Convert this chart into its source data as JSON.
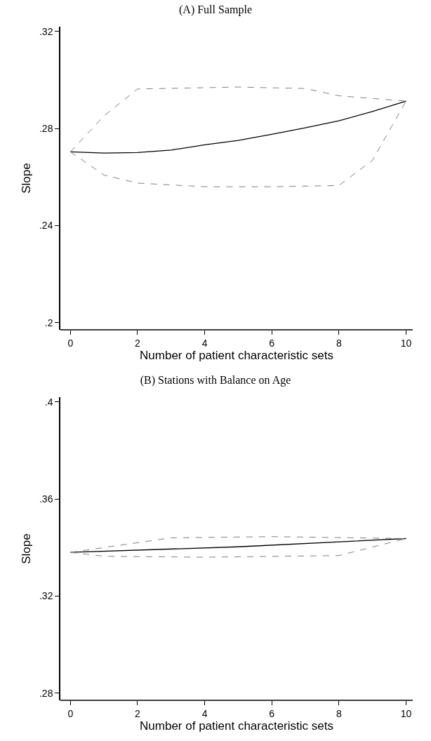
{
  "chart_data": [
    {
      "type": "line",
      "title": "(A) Full Sample",
      "xlabel": "Number of patient characteristic sets",
      "ylabel": "Slope",
      "xlim": [
        -0.3,
        10.2
      ],
      "xticks": [
        0,
        2,
        4,
        6,
        8,
        10
      ],
      "ylim": [
        0.197,
        0.322
      ],
      "yticks": [
        {
          "value": 0.2,
          "label": ".2"
        },
        {
          "value": 0.24,
          "label": ".24"
        },
        {
          "value": 0.28,
          "label": ".28"
        },
        {
          "value": 0.32,
          "label": ".32"
        }
      ],
      "grid": false,
      "marker": "none",
      "series": [
        {
          "color": "#000000",
          "line_style": "solid",
          "x": [
            0,
            1,
            2,
            3,
            4,
            5,
            6,
            7,
            8,
            9,
            10
          ],
          "values": [
            0.2704,
            0.2699,
            0.2701,
            0.2711,
            0.2733,
            0.2751,
            0.2776,
            0.2803,
            0.2832,
            0.287,
            0.2913
          ]
        },
        {
          "color": "#7f7f7f",
          "line_style": "dashed",
          "x": [
            0,
            1,
            2,
            5,
            7,
            8,
            10
          ],
          "values": [
            0.2704,
            0.2852,
            0.2963,
            0.2971,
            0.2965,
            0.2935,
            0.2913
          ]
        },
        {
          "color": "#7f7f7f",
          "line_style": "dashed",
          "x": [
            0,
            1,
            2,
            4,
            6,
            8,
            9,
            10
          ],
          "values": [
            0.2704,
            0.2608,
            0.2575,
            0.256,
            0.256,
            0.2565,
            0.2669,
            0.2913
          ]
        }
      ]
    },
    {
      "type": "line",
      "title": "(B) Stations with Balance on Age",
      "xlabel": "Number of patient characteristic sets",
      "ylabel": "Slope",
      "xlim": [
        -0.3,
        10.2
      ],
      "xticks": [
        0,
        2,
        4,
        6,
        8,
        10
      ],
      "ylim": [
        0.277,
        0.402
      ],
      "yticks": [
        {
          "value": 0.28,
          "label": ".28"
        },
        {
          "value": 0.32,
          "label": ".32"
        },
        {
          "value": 0.36,
          "label": ".36"
        },
        {
          "value": 0.4,
          "label": ".4"
        }
      ],
      "grid": false,
      "marker": "none",
      "series": [
        {
          "color": "#000000",
          "line_style": "solid",
          "x": [
            0,
            5,
            10
          ],
          "values": [
            0.338,
            0.3403,
            0.3437
          ]
        },
        {
          "color": "#7f7f7f",
          "line_style": "dashed",
          "x": [
            0,
            3,
            6,
            10
          ],
          "values": [
            0.338,
            0.344,
            0.3445,
            0.3437
          ]
        },
        {
          "color": "#7f7f7f",
          "line_style": "dashed",
          "x": [
            0,
            1,
            4,
            8,
            10
          ],
          "values": [
            0.338,
            0.3364,
            0.336,
            0.3367,
            0.3437
          ]
        }
      ]
    }
  ]
}
